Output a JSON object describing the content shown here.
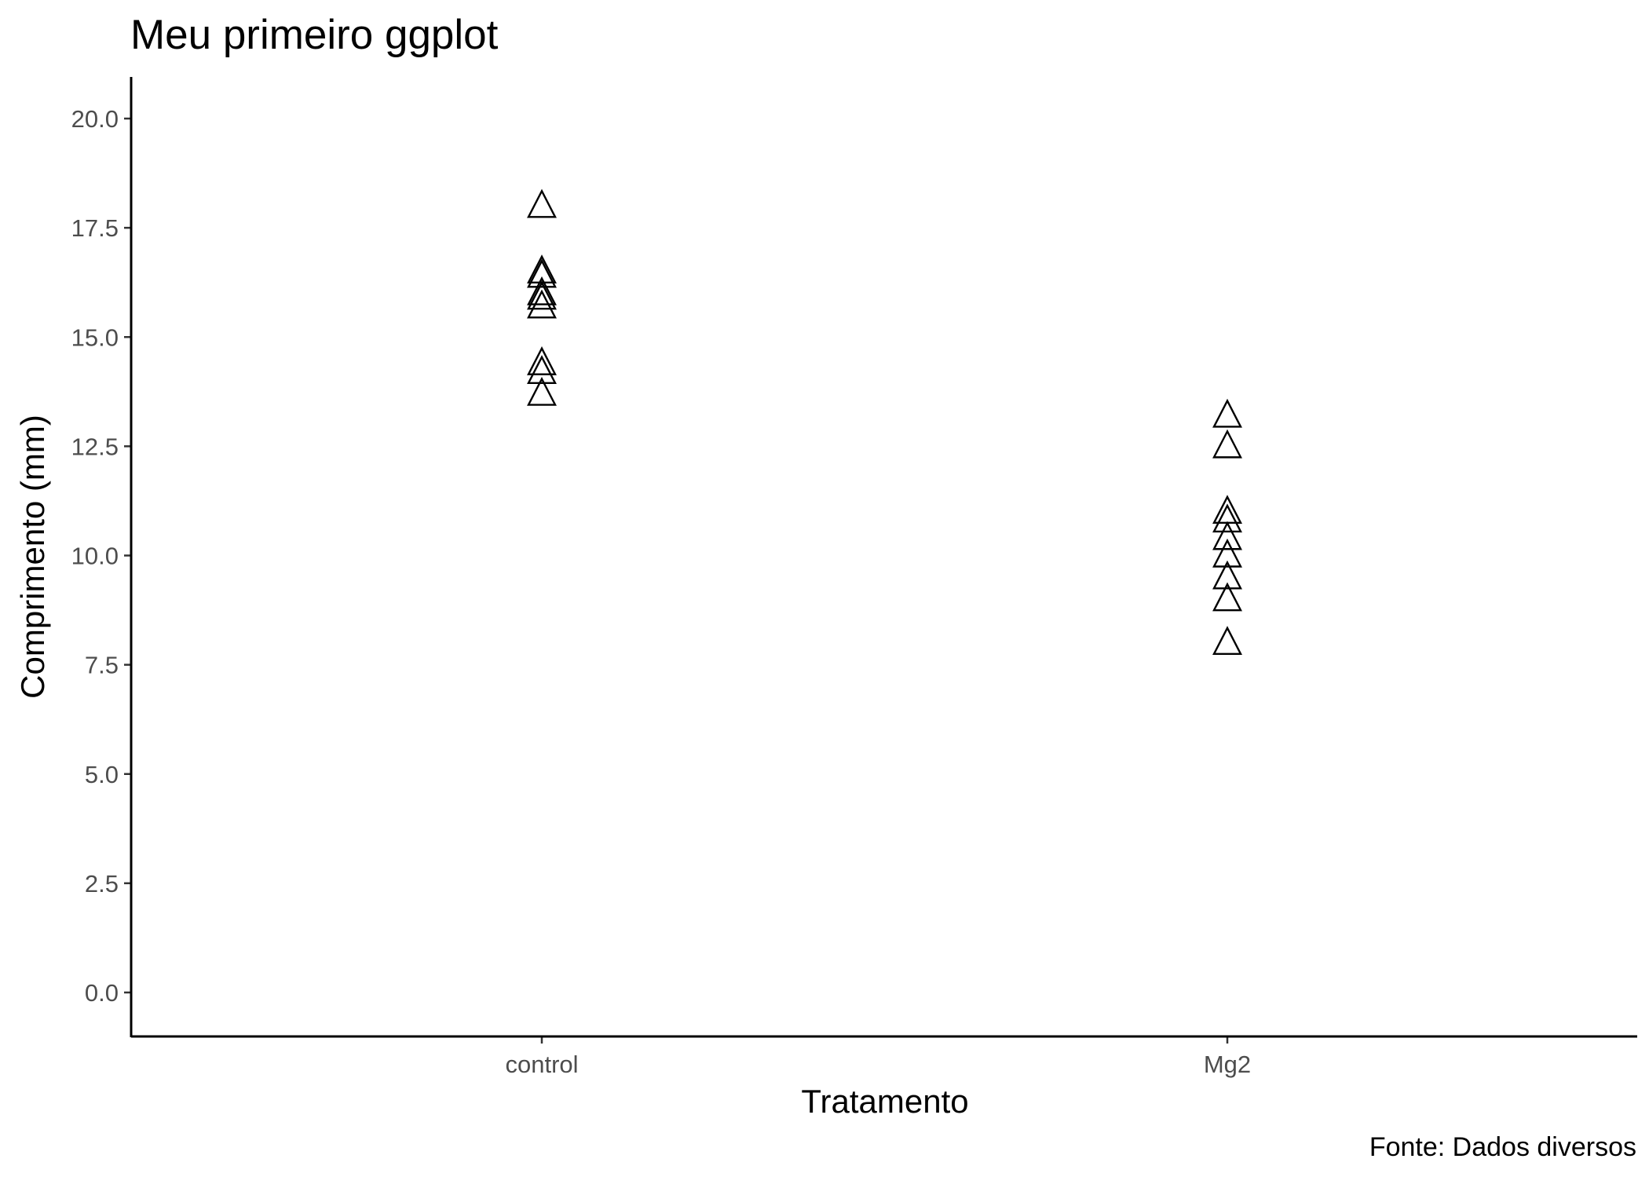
{
  "chart_data": {
    "type": "scatter",
    "title": "Meu primeiro ggplot",
    "caption": "Fonte: Dados diversos",
    "xlabel": "Tratamento",
    "ylabel": "Comprimento (mm)",
    "categories": [
      "control",
      "Mg2"
    ],
    "yticks": [
      0.0,
      2.5,
      5.0,
      7.5,
      10.0,
      12.5,
      15.0,
      17.5,
      20.0
    ],
    "ytick_labels": [
      "0.0",
      "2.5",
      "5.0",
      "7.5",
      "10.0",
      "12.5",
      "15.0",
      "17.5",
      "20.0"
    ],
    "ylim": [
      -1.0,
      21.0
    ],
    "grid": false,
    "marker": "open-triangle",
    "series": [
      {
        "category": "control",
        "values": [
          18.0,
          16.5,
          16.4,
          16.0,
          15.9,
          15.7,
          14.4,
          14.2,
          13.7
        ]
      },
      {
        "category": "Mg2",
        "values": [
          13.2,
          12.5,
          11.0,
          10.8,
          10.4,
          10.0,
          9.5,
          9.0,
          8.0
        ]
      }
    ]
  }
}
